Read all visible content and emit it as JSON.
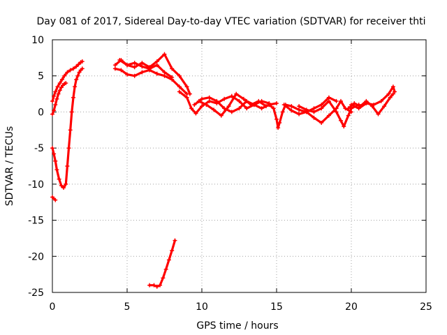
{
  "chart_data": {
    "type": "scatter",
    "title": "Day 081 of 2017, Sidereal Day-to-day VTEC variation (SDTVAR) for receiver thti",
    "xlabel": "GPS time / hours",
    "ylabel": "SDTVAR / TECUs",
    "xlim": [
      0,
      25
    ],
    "ylim": [
      -25,
      10
    ],
    "xticks": [
      0,
      5,
      10,
      15,
      20,
      25
    ],
    "yticks": [
      -25,
      -20,
      -15,
      -10,
      -5,
      0,
      5,
      10
    ],
    "grid": true,
    "marker": "+",
    "color": "#ff0000",
    "series": [
      {
        "x": [
          0.0,
          0.1,
          0.2,
          0.35,
          0.5,
          0.65,
          0.8,
          1.0,
          1.2,
          1.4,
          1.6,
          1.75,
          1.9,
          2.0
        ],
        "y": [
          1.5,
          2.2,
          2.8,
          3.5,
          4.0,
          4.5,
          5.0,
          5.5,
          5.8,
          6.0,
          6.3,
          6.6,
          6.9,
          7.0
        ]
      },
      {
        "x": [
          0.0,
          0.1,
          0.2,
          0.3,
          0.45,
          0.6,
          0.75,
          0.9,
          1.0,
          1.1,
          1.2,
          1.3,
          1.4,
          1.5,
          1.6,
          1.7,
          1.8,
          1.9,
          2.0
        ],
        "y": [
          -5.0,
          -5.8,
          -6.8,
          -8.0,
          -9.3,
          -10.2,
          -10.5,
          -10.0,
          -7.5,
          -5.0,
          -2.5,
          0.0,
          2.0,
          3.5,
          4.5,
          5.0,
          5.5,
          5.8,
          6.0
        ]
      },
      {
        "x": [
          0.0,
          0.1,
          0.2,
          0.3,
          0.4,
          0.5,
          0.6,
          0.7,
          0.8,
          0.9
        ],
        "y": [
          -0.3,
          0.2,
          1.0,
          1.8,
          2.5,
          3.0,
          3.4,
          3.7,
          3.9,
          4.0
        ]
      },
      {
        "x": [
          0.0,
          0.1,
          0.2
        ],
        "y": [
          -11.8,
          -12.0,
          -12.2
        ]
      },
      {
        "x": [
          4.2,
          4.6,
          5.0,
          5.5,
          6.0,
          6.5,
          7.0,
          7.5,
          8.0,
          8.5,
          9.0,
          9.2
        ],
        "y": [
          6.5,
          7.2,
          6.5,
          6.2,
          6.8,
          6.2,
          7.0,
          8.0,
          6.0,
          5.0,
          3.5,
          2.5
        ]
      },
      {
        "x": [
          4.2,
          4.6,
          5.0,
          5.5,
          6.0,
          6.5,
          7.0,
          7.5,
          8.0,
          8.5,
          9.0
        ],
        "y": [
          6.0,
          5.8,
          5.2,
          5.0,
          5.5,
          5.8,
          5.3,
          5.0,
          4.5,
          3.5,
          2.5
        ]
      },
      {
        "x": [
          4.5,
          5.0,
          5.5,
          6.0,
          6.5,
          7.0,
          7.5,
          8.0
        ],
        "y": [
          7.2,
          6.5,
          6.8,
          6.3,
          6.0,
          6.5,
          5.5,
          4.8
        ]
      },
      {
        "x": [
          8.5,
          9.0,
          9.3,
          9.6,
          10.0,
          10.5,
          11.0,
          11.5,
          12.0,
          12.5,
          13.0,
          13.5,
          14.0,
          14.5
        ],
        "y": [
          2.8,
          2.0,
          0.5,
          -0.2,
          0.8,
          1.5,
          1.2,
          1.8,
          2.2,
          1.5,
          0.5,
          1.0,
          1.5,
          1.2
        ]
      },
      {
        "x": [
          9.5,
          10.0,
          10.5,
          11.0,
          11.5,
          12.0,
          12.5,
          13.0,
          13.5,
          14.0,
          14.5,
          15.0
        ],
        "y": [
          1.0,
          1.8,
          2.0,
          1.5,
          0.5,
          0.0,
          0.5,
          1.5,
          1.0,
          0.5,
          1.0,
          1.2
        ]
      },
      {
        "x": [
          9.8,
          10.3,
          10.8,
          11.3,
          11.8,
          12.3,
          12.8,
          13.3,
          13.8,
          14.3
        ],
        "y": [
          1.5,
          1.0,
          0.3,
          -0.5,
          0.8,
          2.5,
          1.8,
          1.0,
          1.5,
          0.8
        ]
      },
      {
        "x": [
          14.5,
          14.8,
          15.0,
          15.1,
          15.2,
          15.4,
          15.6,
          16.0,
          16.5,
          17.0,
          17.5,
          18.0,
          18.5,
          19.0
        ],
        "y": [
          1.0,
          0.5,
          -1.0,
          -2.2,
          -1.5,
          0.0,
          1.0,
          0.8,
          0.3,
          0.0,
          0.5,
          1.0,
          2.0,
          1.5
        ]
      },
      {
        "x": [
          15.5,
          16.0,
          16.5,
          17.0,
          17.5,
          18.0,
          18.5,
          19.0,
          19.3,
          19.6,
          20.0
        ],
        "y": [
          1.0,
          0.2,
          -0.3,
          0.0,
          -0.8,
          -1.5,
          -0.5,
          0.5,
          1.5,
          0.5,
          0.0
        ]
      },
      {
        "x": [
          16.5,
          17.0,
          17.5,
          18.0,
          18.5,
          19.0,
          19.3,
          19.5,
          19.8,
          20.0,
          20.5
        ],
        "y": [
          0.8,
          0.3,
          0.0,
          0.5,
          1.5,
          0.0,
          -1.2,
          -2.0,
          -0.5,
          0.5,
          1.0
        ]
      },
      {
        "x": [
          19.8,
          20.2,
          20.6,
          21.0,
          21.4,
          21.8,
          22.2,
          22.6,
          22.8
        ],
        "y": [
          0.5,
          1.2,
          0.8,
          1.5,
          0.8,
          -0.3,
          0.8,
          2.0,
          2.5
        ]
      },
      {
        "x": [
          20.0,
          20.5,
          21.0,
          21.5,
          22.0,
          22.5,
          22.8,
          22.9
        ],
        "y": [
          1.0,
          0.5,
          1.2,
          1.0,
          1.5,
          2.5,
          3.5,
          2.8
        ]
      },
      {
        "x": [
          6.5,
          6.8,
          7.0,
          7.2,
          7.4,
          7.6,
          7.8,
          8.0,
          8.2
        ],
        "y": [
          -24.0,
          -24.0,
          -24.2,
          -24.0,
          -23.0,
          -21.8,
          -20.5,
          -19.2,
          -17.8
        ]
      }
    ]
  }
}
